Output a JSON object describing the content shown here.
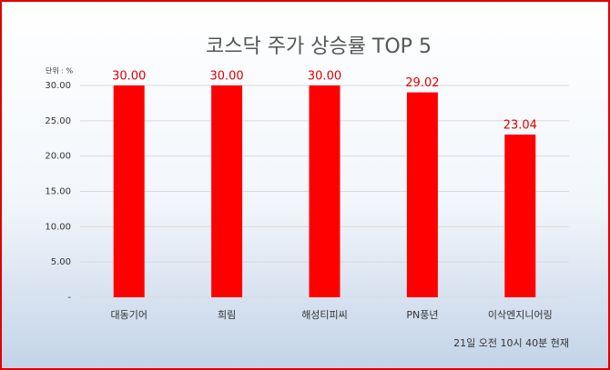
{
  "chart_data": {
    "type": "bar",
    "title": "코스닥 주가 상승률 TOP 5",
    "unit_label": "단위 : %",
    "categories": [
      "대동기어",
      "희림",
      "해성티피씨",
      "PN풍년",
      "이삭엔지니어링"
    ],
    "values": [
      30,
      30,
      30,
      29.02,
      23.04
    ],
    "value_labels": [
      "30.00",
      "30.00",
      "30.00",
      "29.02",
      "23.04"
    ],
    "color": "#ff0000",
    "ylim": [
      0,
      30
    ],
    "yticks": [
      {
        "value": 0,
        "label": "-"
      },
      {
        "value": 5,
        "label": "5.00"
      },
      {
        "value": 10,
        "label": "10.00"
      },
      {
        "value": 15,
        "label": "15.00"
      },
      {
        "value": 20,
        "label": "20.00"
      },
      {
        "value": 25,
        "label": "25.00"
      },
      {
        "value": 30,
        "label": "30.00"
      }
    ],
    "grid": true,
    "footnote": "21일 오전 10시 40분 현재"
  }
}
